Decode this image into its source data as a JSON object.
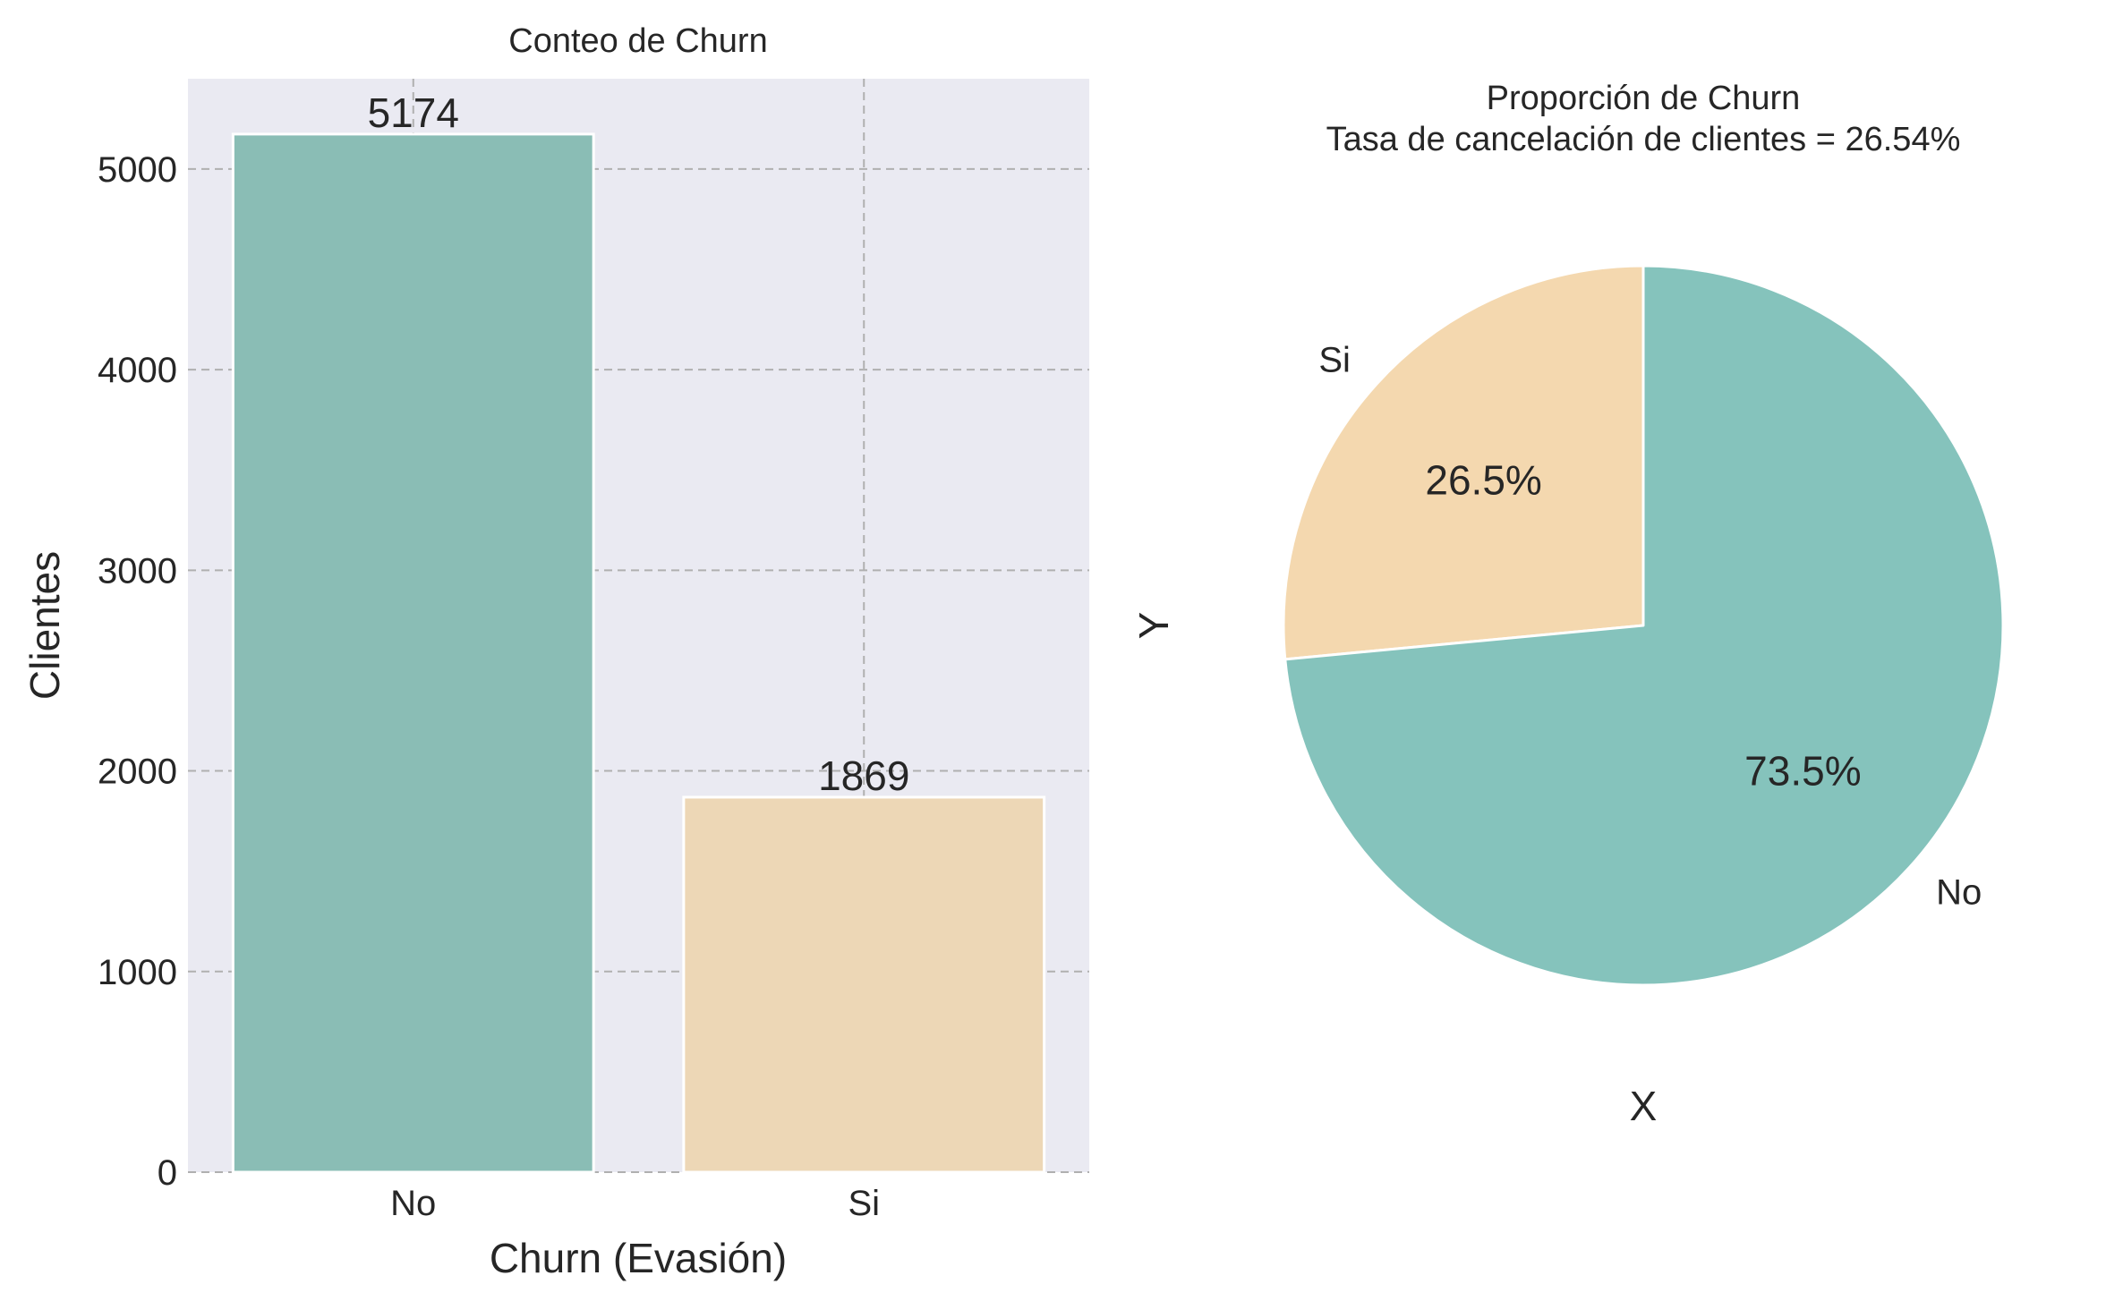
{
  "chart_data": [
    {
      "type": "bar",
      "title": "Conteo de Churn",
      "xlabel": "Churn (Evasión)",
      "ylabel": "Clientes",
      "categories": [
        "No",
        "Si"
      ],
      "values": [
        5174,
        1869
      ],
      "value_labels": [
        "5174",
        "1869"
      ],
      "colors": [
        "#8abdb5",
        "#edd7b6"
      ],
      "ylim": [
        0,
        5450
      ],
      "yticks": [
        0,
        1000,
        2000,
        3000,
        4000,
        5000
      ],
      "ytick_labels": [
        "0",
        "1000",
        "2000",
        "3000",
        "4000",
        "5000"
      ],
      "grid": true,
      "background": "#eaeaf2"
    },
    {
      "type": "pie",
      "title_line1": "Proporción de Churn",
      "title_line2": "Tasa de cancelación de clientes = 26.54%",
      "xlabel": "X",
      "ylabel": "Y",
      "labels": [
        "No",
        "Si"
      ],
      "values": [
        73.5,
        26.5
      ],
      "pct_labels": [
        "73.5%",
        "26.5%"
      ],
      "colors": [
        "#85c3bc",
        "#f4d8af"
      ],
      "startangle": 90,
      "counterclock": false
    }
  ]
}
